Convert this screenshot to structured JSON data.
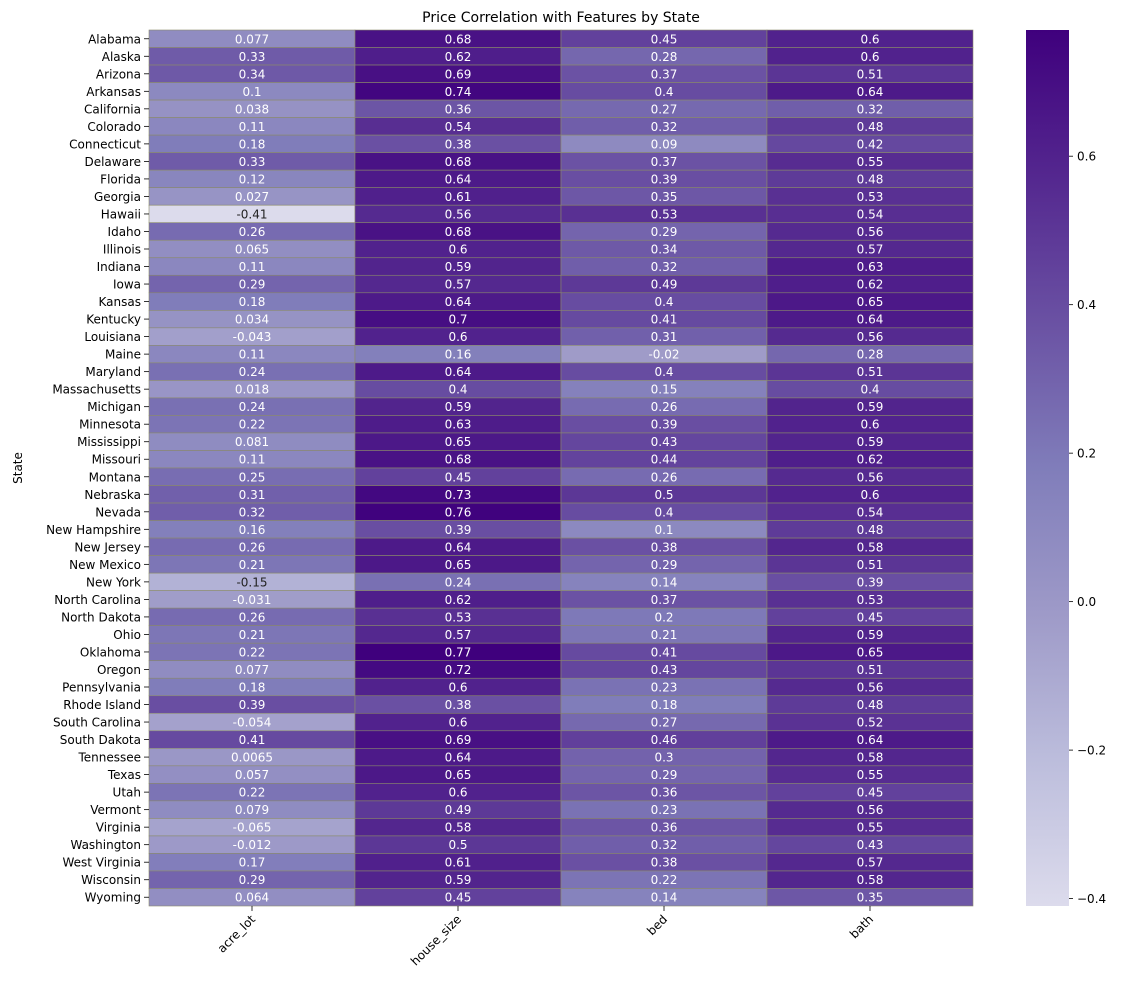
{
  "chart_data": {
    "type": "heatmap",
    "title": "Price Correlation with Features by State",
    "xlabel": "",
    "ylabel": "State",
    "columns": [
      "acre_lot",
      "house_size",
      "bed",
      "bath"
    ],
    "rows": [
      "Alabama",
      "Alaska",
      "Arizona",
      "Arkansas",
      "California",
      "Colorado",
      "Connecticut",
      "Delaware",
      "Florida",
      "Georgia",
      "Hawaii",
      "Idaho",
      "Illinois",
      "Indiana",
      "Iowa",
      "Kansas",
      "Kentucky",
      "Louisiana",
      "Maine",
      "Maryland",
      "Massachusetts",
      "Michigan",
      "Minnesota",
      "Mississippi",
      "Missouri",
      "Montana",
      "Nebraska",
      "Nevada",
      "New Hampshire",
      "New Jersey",
      "New Mexico",
      "New York",
      "North Carolina",
      "North Dakota",
      "Ohio",
      "Oklahoma",
      "Oregon",
      "Pennsylvania",
      "Rhode Island",
      "South Carolina",
      "South Dakota",
      "Tennessee",
      "Texas",
      "Utah",
      "Vermont",
      "Virginia",
      "Washington",
      "West Virginia",
      "Wisconsin",
      "Wyoming"
    ],
    "values": [
      [
        0.077,
        0.68,
        0.45,
        0.6
      ],
      [
        0.33,
        0.62,
        0.28,
        0.6
      ],
      [
        0.34,
        0.69,
        0.37,
        0.51
      ],
      [
        0.1,
        0.74,
        0.4,
        0.64
      ],
      [
        0.038,
        0.36,
        0.27,
        0.32
      ],
      [
        0.11,
        0.54,
        0.32,
        0.48
      ],
      [
        0.18,
        0.38,
        0.09,
        0.42
      ],
      [
        0.33,
        0.68,
        0.37,
        0.55
      ],
      [
        0.12,
        0.64,
        0.39,
        0.48
      ],
      [
        0.027,
        0.61,
        0.35,
        0.53
      ],
      [
        -0.41,
        0.56,
        0.53,
        0.54
      ],
      [
        0.26,
        0.68,
        0.29,
        0.56
      ],
      [
        0.065,
        0.6,
        0.34,
        0.57
      ],
      [
        0.11,
        0.59,
        0.32,
        0.63
      ],
      [
        0.29,
        0.57,
        0.49,
        0.62
      ],
      [
        0.18,
        0.64,
        0.4,
        0.65
      ],
      [
        0.034,
        0.7,
        0.41,
        0.64
      ],
      [
        -0.043,
        0.6,
        0.31,
        0.56
      ],
      [
        0.11,
        0.16,
        -0.02,
        0.28
      ],
      [
        0.24,
        0.64,
        0.4,
        0.51
      ],
      [
        0.018,
        0.4,
        0.15,
        0.4
      ],
      [
        0.24,
        0.59,
        0.26,
        0.59
      ],
      [
        0.22,
        0.63,
        0.39,
        0.6
      ],
      [
        0.081,
        0.65,
        0.43,
        0.59
      ],
      [
        0.11,
        0.68,
        0.44,
        0.62
      ],
      [
        0.25,
        0.45,
        0.26,
        0.56
      ],
      [
        0.31,
        0.73,
        0.5,
        0.6
      ],
      [
        0.32,
        0.76,
        0.4,
        0.54
      ],
      [
        0.16,
        0.39,
        0.1,
        0.48
      ],
      [
        0.26,
        0.64,
        0.38,
        0.58
      ],
      [
        0.21,
        0.65,
        0.29,
        0.51
      ],
      [
        -0.15,
        0.24,
        0.14,
        0.39
      ],
      [
        -0.031,
        0.62,
        0.37,
        0.53
      ],
      [
        0.26,
        0.53,
        0.2,
        0.45
      ],
      [
        0.21,
        0.57,
        0.21,
        0.59
      ],
      [
        0.22,
        0.77,
        0.41,
        0.65
      ],
      [
        0.077,
        0.72,
        0.43,
        0.51
      ],
      [
        0.18,
        0.6,
        0.23,
        0.56
      ],
      [
        0.39,
        0.38,
        0.18,
        0.48
      ],
      [
        -0.054,
        0.6,
        0.27,
        0.52
      ],
      [
        0.41,
        0.69,
        0.46,
        0.64
      ],
      [
        0.0065,
        0.64,
        0.3,
        0.58
      ],
      [
        0.057,
        0.65,
        0.29,
        0.55
      ],
      [
        0.22,
        0.6,
        0.36,
        0.45
      ],
      [
        0.079,
        0.49,
        0.23,
        0.56
      ],
      [
        -0.065,
        0.58,
        0.36,
        0.55
      ],
      [
        -0.012,
        0.5,
        0.32,
        0.43
      ],
      [
        0.17,
        0.61,
        0.38,
        0.57
      ],
      [
        0.29,
        0.59,
        0.22,
        0.58
      ],
      [
        0.064,
        0.45,
        0.14,
        0.35
      ]
    ],
    "colormap": "Purples",
    "colors": [
      "#dcdbec",
      "#bcbddc",
      "#9e9ac8",
      "#807dba",
      "#6a51a3",
      "#54278f",
      "#3f007d"
    ],
    "vmin": -0.41,
    "vmax": 0.77,
    "colorbar_ticks": [
      0.6,
      0.4,
      0.2,
      0.0,
      -0.2,
      -0.4
    ],
    "colorbar_tick_labels": [
      "0.6",
      "0.4",
      "0.2",
      "0.0",
      "−0.2",
      "−0.4"
    ],
    "colorbar_placement": "right",
    "grid": false
  }
}
